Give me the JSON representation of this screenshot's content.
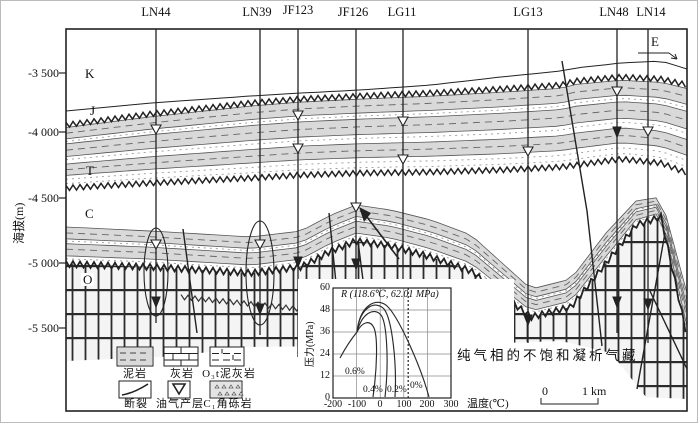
{
  "elevation_axis": {
    "label": "海拔(m)",
    "ticks": [
      "-3 500",
      "-4 000",
      "-4 500",
      "-5 000",
      "-5 500"
    ]
  },
  "wells": [
    "LN44",
    "LN39",
    "JF123",
    "JF126",
    "LG11",
    "LG13",
    "LN48",
    "LN14"
  ],
  "strata_labels": {
    "k": "K",
    "j": "J",
    "t": "T",
    "c": "C",
    "o": "O"
  },
  "direction_marker": "E",
  "reservoir_annotation": "纯气相的不饱和凝析气藏",
  "scale_bar": {
    "zero": "0",
    "one_km": "1 km"
  },
  "legend": {
    "mudstone": "泥岩",
    "limestone": "灰岩",
    "marl": "O₃t泥灰岩",
    "fault": "断裂",
    "pay_zone": "油气产层",
    "breccia": "C₁角砾岩"
  },
  "colors": {
    "line": "#222222",
    "band_fill": "#d9d9d9",
    "grid_gray": "#8a8a8a"
  },
  "chart_data": {
    "type": "line",
    "title": "R (118.6℃, 62.01 MPa)",
    "xlabel": "温度(℃)",
    "ylabel": "压力(MPa)",
    "xlim": [
      -200,
      300
    ],
    "ylim": [
      0,
      60
    ],
    "x_ticks": [
      -200,
      -100,
      0,
      100,
      200,
      300
    ],
    "y_ticks": [
      0,
      12,
      24,
      36,
      48,
      60
    ],
    "grid": true,
    "legend_position": "none",
    "reservoir_point": {
      "label": "R",
      "temperature_c": 118.6,
      "pressure_mpa": 62.01
    },
    "reference_line_x": 118.6,
    "series": [
      {
        "name": "0.6%",
        "kind": "phase-envelope",
        "points": [
          [
            -170,
            22
          ],
          [
            -100,
            36
          ],
          [
            -60,
            38
          ],
          [
            -30,
            18
          ],
          [
            -25,
            0
          ]
        ]
      },
      {
        "name": "0.4%",
        "kind": "phase-envelope",
        "points": [
          [
            -100,
            36
          ],
          [
            -20,
            43
          ],
          [
            5,
            24
          ],
          [
            15,
            0
          ]
        ]
      },
      {
        "name": "0.2%",
        "kind": "phase-envelope",
        "points": [
          [
            -100,
            36
          ],
          [
            -10,
            46
          ],
          [
            40,
            24
          ],
          [
            60,
            0
          ]
        ]
      },
      {
        "name": "0%",
        "kind": "phase-envelope",
        "points": [
          [
            -100,
            36
          ],
          [
            -5,
            48
          ],
          [
            100,
            30
          ],
          [
            205,
            0
          ]
        ]
      }
    ]
  }
}
